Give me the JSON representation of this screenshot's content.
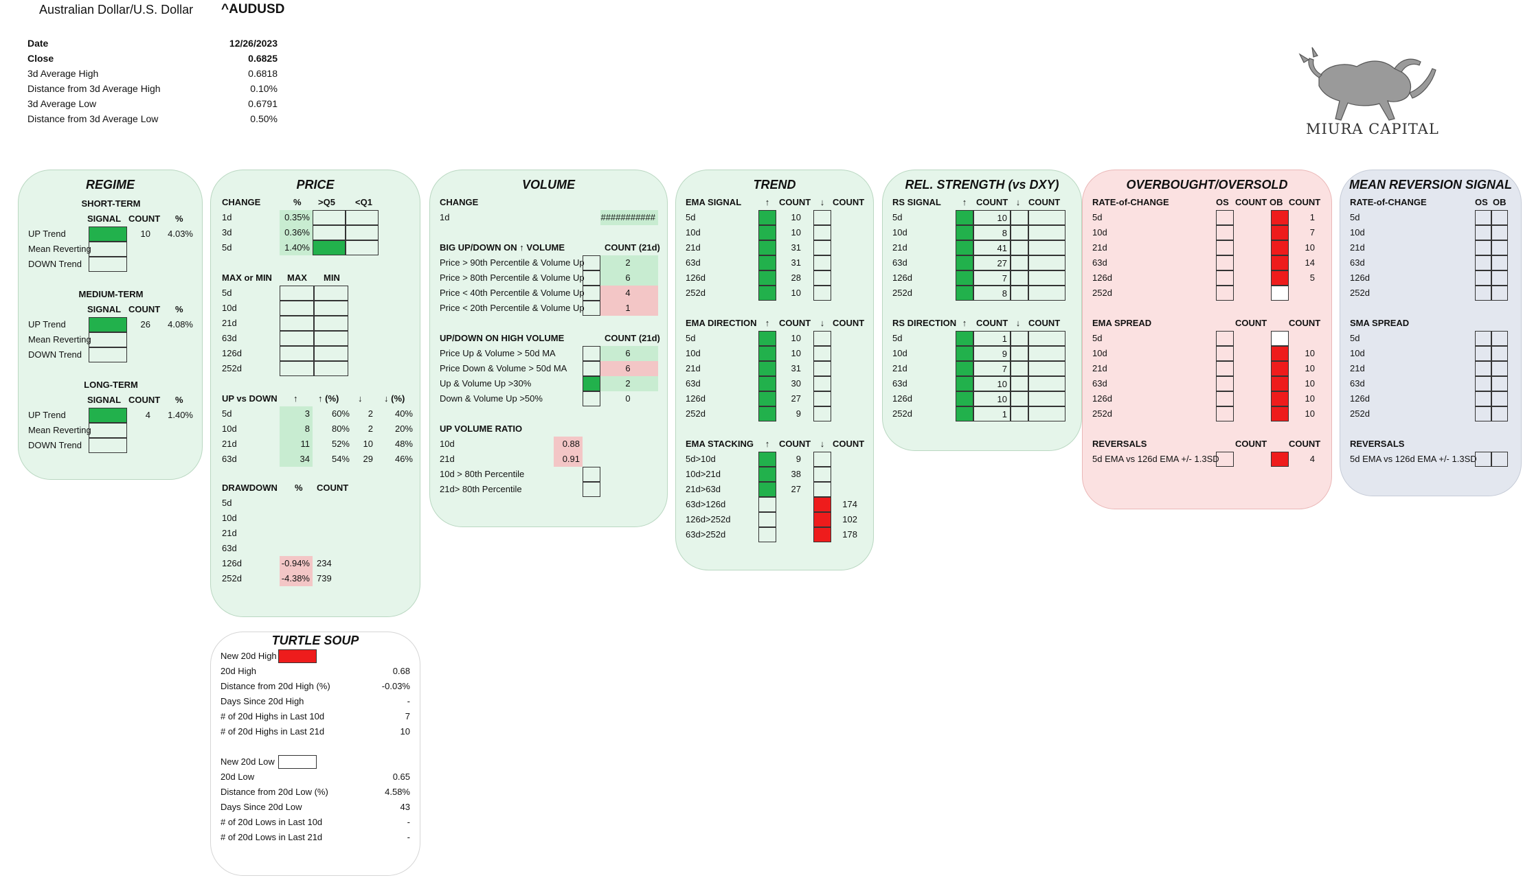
{
  "header": {
    "name": "Australian Dollar/U.S. Dollar",
    "ticker": "^AUDUSD"
  },
  "summary": [
    {
      "label": "Date",
      "value": "12/26/2023",
      "bold": true
    },
    {
      "label": "Close",
      "value": "0.6825",
      "bold": true
    },
    {
      "label": "3d Average High",
      "value": "0.6818"
    },
    {
      "label": "Distance from 3d Average High",
      "value": "0.10%"
    },
    {
      "label": "3d Average Low",
      "value": "0.6791"
    },
    {
      "label": "Distance from 3d Average Low",
      "value": "0.50%"
    }
  ],
  "logo": {
    "text": "MIURA CAPITAL",
    "icon": "bull-icon"
  },
  "colors": {
    "green_panel": "#e5f5ea",
    "pink_panel": "#fbe1e1",
    "lav_panel": "#e3e7ef",
    "signal_green": "#22b14c",
    "signal_red": "#ee1c1c",
    "light_green": "#c8ecd1",
    "light_red": "#f3c6c6"
  },
  "regime": {
    "title": "REGIME",
    "col_signal": "SIGNAL",
    "col_count": "COUNT",
    "col_pct": "%",
    "rows": [
      "UP Trend",
      "Mean Reverting",
      "DOWN Trend"
    ],
    "sections": [
      {
        "title": "SHORT-TERM",
        "count": "10",
        "pct": "4.03%"
      },
      {
        "title": "MEDIUM-TERM",
        "count": "26",
        "pct": "4.08%"
      },
      {
        "title": "LONG-TERM",
        "count": "4",
        "pct": "1.40%"
      }
    ]
  },
  "price": {
    "title": "PRICE",
    "change": {
      "h": [
        "CHANGE",
        "%",
        ">Q5",
        "<Q1"
      ],
      "rows": [
        {
          "p": "1d",
          "v": "0.35%"
        },
        {
          "p": "3d",
          "v": "0.36%"
        },
        {
          "p": "5d",
          "v": "1.40%"
        }
      ]
    },
    "maxmin": {
      "h": [
        "MAX or MIN",
        "MAX",
        "MIN"
      ],
      "rows": [
        "5d",
        "10d",
        "21d",
        "63d",
        "126d",
        "252d"
      ]
    },
    "updown": {
      "h": [
        "UP vs DOWN",
        "↑",
        "↑ (%)",
        "↓",
        "↓ (%)"
      ],
      "rows": [
        {
          "p": "5d",
          "u": "3",
          "up": "60%",
          "d": "2",
          "dp": "40%"
        },
        {
          "p": "10d",
          "u": "8",
          "up": "80%",
          "d": "2",
          "dp": "20%"
        },
        {
          "p": "21d",
          "u": "11",
          "up": "52%",
          "d": "10",
          "dp": "48%"
        },
        {
          "p": "63d",
          "u": "34",
          "up": "54%",
          "d": "29",
          "dp": "46%"
        }
      ]
    },
    "drawdown": {
      "h": [
        "DRAWDOWN",
        "%",
        "COUNT"
      ],
      "rows": [
        {
          "p": "5d",
          "v": "",
          "c": ""
        },
        {
          "p": "10d",
          "v": "",
          "c": ""
        },
        {
          "p": "21d",
          "v": "",
          "c": ""
        },
        {
          "p": "63d",
          "v": "",
          "c": ""
        },
        {
          "p": "126d",
          "v": "-0.94%",
          "c": "234"
        },
        {
          "p": "252d",
          "v": "-4.38%",
          "c": "739"
        }
      ]
    }
  },
  "turtle": {
    "title": "TURTLE SOUP",
    "high": [
      {
        "l": "New 20d High",
        "v": ""
      },
      {
        "l": "20d High",
        "v": "0.68"
      },
      {
        "l": "Distance from 20d High (%)",
        "v": "-0.03%"
      },
      {
        "l": "Days Since 20d High",
        "v": "-"
      },
      {
        "l": "# of 20d Highs in Last 10d",
        "v": "7"
      },
      {
        "l": "# of 20d Highs in Last 21d",
        "v": "10"
      }
    ],
    "low": [
      {
        "l": "New 20d Low",
        "v": ""
      },
      {
        "l": "20d Low",
        "v": "0.65"
      },
      {
        "l": "Distance from 20d Low (%)",
        "v": "4.58%"
      },
      {
        "l": "Days Since 20d Low",
        "v": "43"
      },
      {
        "l": "# of 20d Lows in Last 10d",
        "v": "-"
      },
      {
        "l": "# of 20d Lows in Last 21d",
        "v": "-"
      }
    ]
  },
  "volume": {
    "title": "VOLUME",
    "change_h": "CHANGE",
    "change_p": "1d",
    "change_v": "###########",
    "big_h": "BIG UP/DOWN ON ↑ VOLUME",
    "big_c": "COUNT (21d)",
    "big": [
      {
        "l": "Price > 90th Percentile & Volume Up",
        "v": "2"
      },
      {
        "l": "Price > 80th Percentile & Volume Up",
        "v": "6"
      },
      {
        "l": "Price < 40th Percentile & Volume Up",
        "v": "4"
      },
      {
        "l": "Price < 20th Percentile & Volume Up",
        "v": "1"
      }
    ],
    "hv_h": "UP/DOWN ON HIGH VOLUME",
    "hv_c": "COUNT (21d)",
    "hv": [
      {
        "l": "Price Up & Volume > 50d MA",
        "v": "6"
      },
      {
        "l": "Price Down & Volume > 50d MA",
        "v": "6"
      },
      {
        "l": "Up & Volume Up >30%",
        "v": "2"
      },
      {
        "l": "Down & Volume Up >50%",
        "v": "0"
      }
    ],
    "ratio_h": "UP VOLUME RATIO",
    "ratio": [
      {
        "l": "10d",
        "v": "0.88"
      },
      {
        "l": "21d",
        "v": "0.91"
      },
      {
        "l": "10d > 80th Percentile",
        "v": ""
      },
      {
        "l": "21d> 80th Percentile",
        "v": ""
      }
    ]
  },
  "trend": {
    "title": "TREND",
    "sig_h": [
      "EMA SIGNAL",
      "↑",
      "COUNT",
      "↓",
      "COUNT"
    ],
    "sig": [
      {
        "p": "5d",
        "c": "10"
      },
      {
        "p": "10d",
        "c": "10"
      },
      {
        "p": "21d",
        "c": "31"
      },
      {
        "p": "63d",
        "c": "31"
      },
      {
        "p": "126d",
        "c": "28"
      },
      {
        "p": "252d",
        "c": "10"
      }
    ],
    "dir_h": [
      "EMA DIRECTION",
      "↑",
      "COUNT",
      "↓",
      "COUNT"
    ],
    "dir": [
      {
        "p": "5d",
        "c": "10"
      },
      {
        "p": "10d",
        "c": "10"
      },
      {
        "p": "21d",
        "c": "31"
      },
      {
        "p": "63d",
        "c": "30"
      },
      {
        "p": "126d",
        "c": "27"
      },
      {
        "p": "252d",
        "c": "9"
      }
    ],
    "stack_h": [
      "EMA STACKING",
      "↑",
      "COUNT",
      "↓",
      "COUNT"
    ],
    "stack": [
      {
        "p": "5d>10d",
        "u": "9",
        "d": ""
      },
      {
        "p": "10d>21d",
        "u": "38",
        "d": ""
      },
      {
        "p": "21d>63d",
        "u": "27",
        "d": ""
      },
      {
        "p": "63d>126d",
        "u": "",
        "d": "174"
      },
      {
        "p": "126d>252d",
        "u": "",
        "d": "102"
      },
      {
        "p": "63d>252d",
        "u": "",
        "d": "178"
      }
    ]
  },
  "rs": {
    "title": "REL. STRENGTH (vs DXY)",
    "sig_h": [
      "RS SIGNAL",
      "↑",
      "COUNT",
      "↓",
      "COUNT"
    ],
    "sig": [
      {
        "p": "5d",
        "c": "10"
      },
      {
        "p": "10d",
        "c": "8"
      },
      {
        "p": "21d",
        "c": "41"
      },
      {
        "p": "63d",
        "c": "27"
      },
      {
        "p": "126d",
        "c": "7"
      },
      {
        "p": "252d",
        "c": "8"
      }
    ],
    "dir_h": [
      "RS DIRECTION",
      "↑",
      "COUNT",
      "↓",
      "COUNT"
    ],
    "dir": [
      {
        "p": "5d",
        "c": "1"
      },
      {
        "p": "10d",
        "c": "9"
      },
      {
        "p": "21d",
        "c": "7"
      },
      {
        "p": "63d",
        "c": "10"
      },
      {
        "p": "126d",
        "c": "10"
      },
      {
        "p": "252d",
        "c": "1"
      }
    ]
  },
  "obos": {
    "title": "OVERBOUGHT/OVERSOLD",
    "roc_h": [
      "RATE-of-CHANGE",
      "OS",
      "COUNT",
      "OB",
      "COUNT"
    ],
    "roc": [
      {
        "p": "5d",
        "c": "1",
        "ob": true
      },
      {
        "p": "10d",
        "c": "7",
        "ob": true
      },
      {
        "p": "21d",
        "c": "10",
        "ob": true
      },
      {
        "p": "63d",
        "c": "14",
        "ob": true
      },
      {
        "p": "126d",
        "c": "5",
        "ob": true
      },
      {
        "p": "252d",
        "c": "",
        "ob": false
      }
    ],
    "spread_h": [
      "EMA SPREAD",
      "COUNT",
      "COUNT"
    ],
    "spread": [
      {
        "p": "5d",
        "c": "",
        "ob": false
      },
      {
        "p": "10d",
        "c": "10",
        "ob": true
      },
      {
        "p": "21d",
        "c": "10",
        "ob": true
      },
      {
        "p": "63d",
        "c": "10",
        "ob": true
      },
      {
        "p": "126d",
        "c": "10",
        "ob": true
      },
      {
        "p": "252d",
        "c": "10",
        "ob": true
      }
    ],
    "rev_h": [
      "REVERSALS",
      "COUNT",
      "COUNT"
    ],
    "rev_l": "5d EMA vs 126d EMA +/- 1.3SD",
    "rev_c": "4"
  },
  "mr": {
    "title": "MEAN REVERSION SIGNAL",
    "roc_h": [
      "RATE-of-CHANGE",
      "OS",
      "OB"
    ],
    "roc": [
      "5d",
      "10d",
      "21d",
      "63d",
      "126d",
      "252d"
    ],
    "sma_h": "SMA SPREAD",
    "sma": [
      "5d",
      "10d",
      "21d",
      "63d",
      "126d",
      "252d"
    ],
    "rev_h": "REVERSALS",
    "rev_l": "5d EMA vs 126d EMA +/- 1.3SD"
  }
}
